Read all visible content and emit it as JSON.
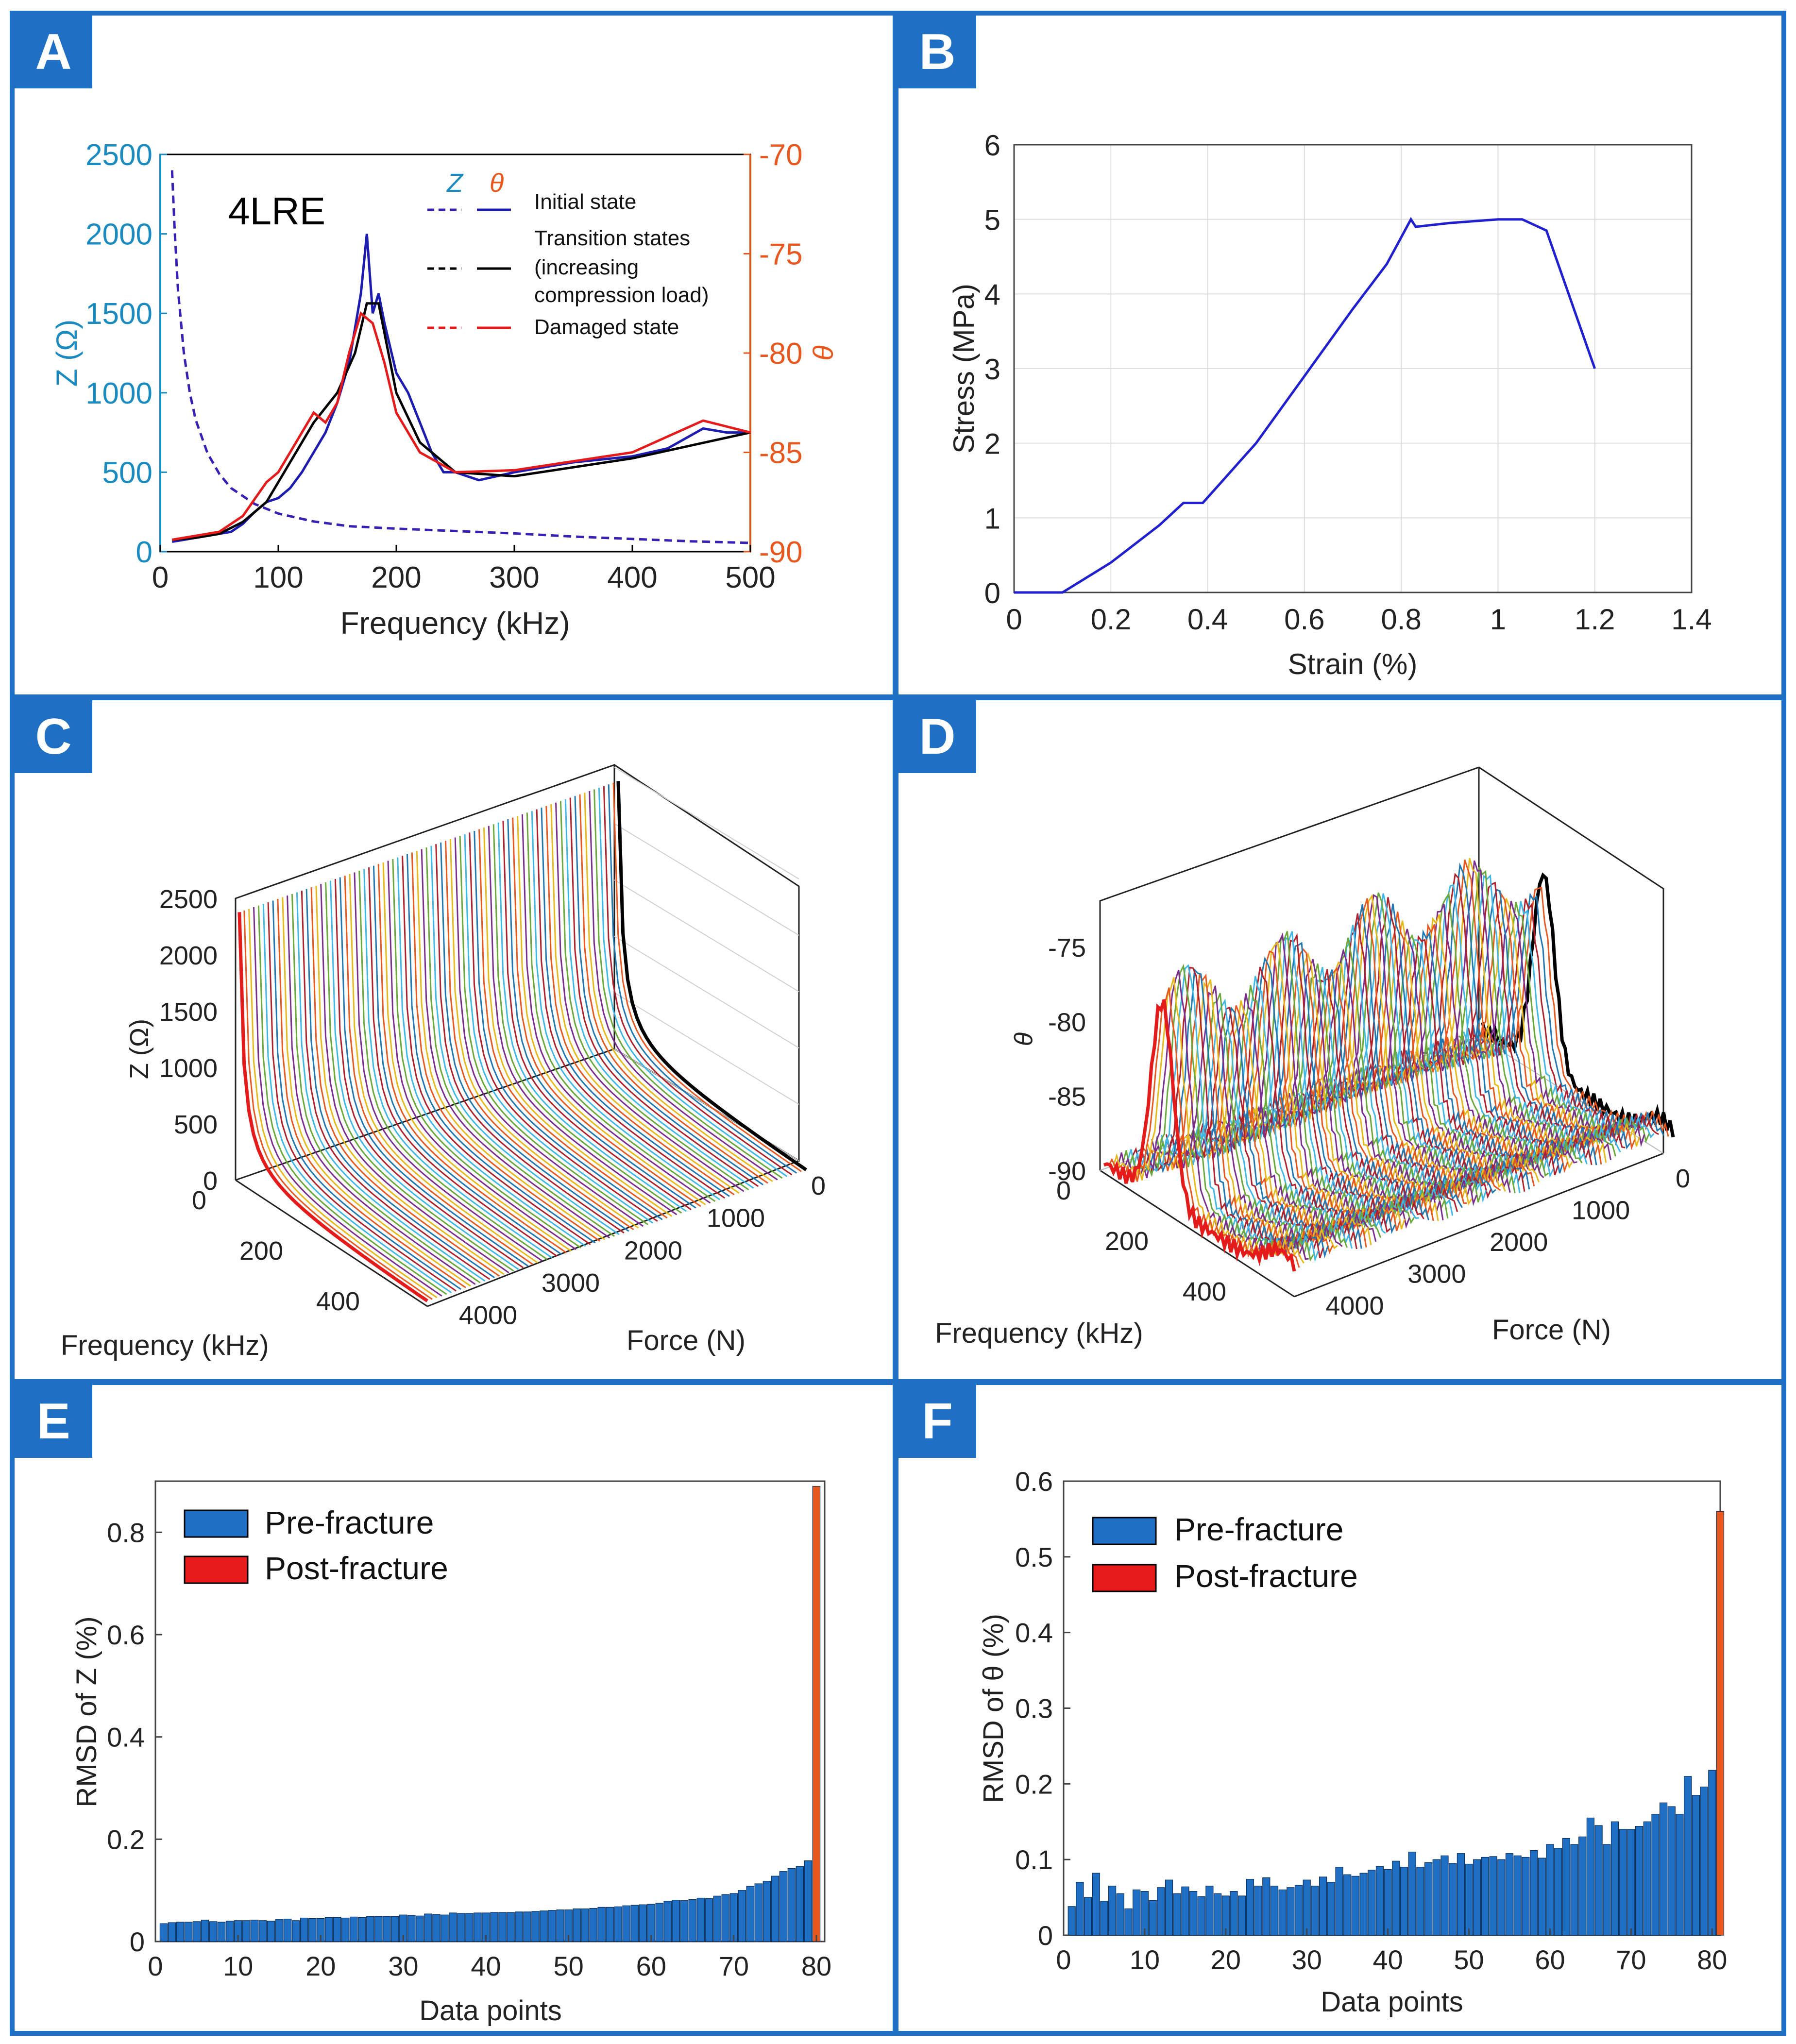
{
  "panels": {
    "A": {
      "label": "A",
      "chart_data": {
        "type": "line",
        "annotation": "4LRE",
        "xlabel": "Frequency (kHz)",
        "ylabel_left": "Z (Ω)",
        "ylabel_right": "θ",
        "xlim": [
          0,
          500
        ],
        "ylim_left": [
          0,
          2500
        ],
        "ylim_right": [
          -90,
          -70
        ],
        "xticks": [
          0,
          100,
          200,
          300,
          400,
          500
        ],
        "yticks_left": [
          0,
          500,
          1000,
          1500,
          2000,
          2500
        ],
        "yticks_right": [
          -90,
          -85,
          -80,
          -75,
          -70
        ],
        "legend_header": [
          "Z",
          "θ"
        ],
        "legend": [
          "Initial state",
          "Transition states",
          "(increasing",
          "compression load)",
          "Damaged state"
        ],
        "series": [
          {
            "name": "Z (dashed)",
            "color": "#3a1fb5",
            "x": [
              10,
              12,
              15,
              20,
              25,
              30,
              40,
              50,
              60,
              80,
              100,
              130,
              160,
              200,
              250,
              300,
              350,
              400,
              450,
              500
            ],
            "values": [
              2400,
              2050,
              1650,
              1250,
              1000,
              830,
              620,
              490,
              400,
              300,
              240,
              190,
              160,
              145,
              130,
              115,
              95,
              80,
              65,
              55
            ]
          },
          {
            "name": "θ Initial state",
            "color": "#1c1cb0",
            "x": [
              10,
              20,
              30,
              40,
              50,
              60,
              70,
              80,
              90,
              100,
              110,
              120,
              130,
              140,
              150,
              160,
              170,
              175,
              180,
              185,
              190,
              200,
              210,
              220,
              230,
              240,
              250,
              270,
              300,
              350,
              400,
              430,
              460,
              480,
              500
            ],
            "values": [
              -89.5,
              -89.4,
              -89.3,
              -89.2,
              -89.1,
              -89.0,
              -88.6,
              -88.0,
              -87.5,
              -87.3,
              -86.8,
              -86.0,
              -85.0,
              -84.0,
              -82.5,
              -80.5,
              -77.0,
              -74.0,
              -78.0,
              -77.0,
              -78.5,
              -81.0,
              -82.0,
              -83.5,
              -85.0,
              -86.0,
              -86.0,
              -86.4,
              -86.0,
              -85.5,
              -85.2,
              -84.8,
              -83.8,
              -84.0,
              -84.0
            ]
          },
          {
            "name": "θ Transition states",
            "color": "#000000",
            "x": [
              10,
              30,
              50,
              70,
              90,
              110,
              130,
              150,
              165,
              175,
              185,
              200,
              220,
              250,
              300,
              400,
              500
            ],
            "values": [
              -89.4,
              -89.3,
              -89.1,
              -88.5,
              -87.5,
              -85.5,
              -83.5,
              -82.0,
              -80.0,
              -77.5,
              -77.5,
              -82.0,
              -84.5,
              -86.0,
              -86.2,
              -85.3,
              -84.0
            ]
          },
          {
            "name": "θ Damaged state",
            "color": "#e51b1b",
            "x": [
              10,
              30,
              50,
              70,
              90,
              100,
              110,
              120,
              130,
              140,
              150,
              160,
              170,
              180,
              190,
              200,
              220,
              250,
              300,
              400,
              460,
              500
            ],
            "values": [
              -89.4,
              -89.2,
              -89.0,
              -88.2,
              -86.5,
              -86.0,
              -85.0,
              -84.0,
              -83.0,
              -83.5,
              -82.5,
              -80.0,
              -78.0,
              -78.5,
              -80.5,
              -83.0,
              -85.0,
              -86.0,
              -85.9,
              -85.0,
              -83.4,
              -84.0
            ]
          }
        ]
      }
    },
    "B": {
      "label": "B",
      "chart_data": {
        "type": "line",
        "xlabel": "Strain (%)",
        "ylabel": "Stress (MPa)",
        "xlim": [
          0,
          1.4
        ],
        "ylim": [
          0,
          6
        ],
        "xticks": [
          "0",
          "0.2",
          "0.4",
          "0.6",
          "0.8",
          "1",
          "1.2",
          "1.4"
        ],
        "xtick_values": [
          0,
          0.2,
          0.4,
          0.6,
          0.8,
          1.0,
          1.2,
          1.4
        ],
        "yticks": [
          0,
          1,
          2,
          3,
          4,
          5,
          6
        ],
        "grid": true,
        "series": [
          {
            "name": "Stress-strain",
            "color": "#2020d0",
            "x": [
              0,
              0.1,
              0.2,
              0.3,
              0.35,
              0.39,
              0.5,
              0.6,
              0.7,
              0.77,
              0.82,
              0.83,
              0.9,
              1.0,
              1.05,
              1.1,
              1.2
            ],
            "values": [
              0,
              0,
              0.4,
              0.9,
              1.2,
              1.2,
              2.0,
              2.9,
              3.8,
              4.4,
              5.0,
              4.9,
              4.95,
              5.0,
              5.0,
              4.85,
              3.0
            ]
          }
        ]
      }
    },
    "C": {
      "label": "C",
      "chart_data": {
        "type": "line",
        "style": "3d-waterfall",
        "zlabel": "Z (Ω)",
        "xlabel": "Frequency (kHz)",
        "ylabel": "Force (N)",
        "zticks": [
          0,
          500,
          1000,
          1500,
          2000,
          2500
        ],
        "freq_ticks": [
          0,
          200,
          400
        ],
        "force_ticks": [
          0,
          1000,
          2000,
          3000,
          4000
        ],
        "series_count": 80,
        "first_series_color": "#000000",
        "last_series_color": "#e51b1b"
      }
    },
    "D": {
      "label": "D",
      "chart_data": {
        "type": "line",
        "style": "3d-waterfall",
        "zlabel": "θ",
        "xlabel": "Frequency (kHz)",
        "ylabel": "Force (N)",
        "zticks": [
          -90,
          -85,
          -80,
          -75
        ],
        "freq_ticks": [
          0,
          200,
          400
        ],
        "force_ticks": [
          0,
          1000,
          2000,
          3000,
          4000
        ],
        "series_count": 80,
        "first_series_color": "#000000",
        "last_series_color": "#e51b1b"
      }
    },
    "E": {
      "label": "E",
      "chart_data": {
        "type": "bar",
        "xlabel": "Data points",
        "ylabel": "RMSD of Z (%)",
        "xlim": [
          0,
          81
        ],
        "ylim": [
          0,
          0.9
        ],
        "xticks": [
          0,
          10,
          20,
          30,
          40,
          50,
          60,
          70,
          80
        ],
        "yticks": [
          "0",
          "0.2",
          "0.4",
          "0.6",
          "0.8"
        ],
        "ytick_values": [
          0,
          0.2,
          0.4,
          0.6,
          0.8
        ],
        "legend": [
          "Pre-fracture",
          "Post-fracture"
        ],
        "colors": {
          "pre": "#1f6fc4",
          "post": "#e8581e"
        },
        "values": [
          0.035,
          0.037,
          0.038,
          0.038,
          0.039,
          0.042,
          0.039,
          0.038,
          0.04,
          0.041,
          0.041,
          0.042,
          0.041,
          0.04,
          0.043,
          0.044,
          0.041,
          0.046,
          0.045,
          0.045,
          0.047,
          0.047,
          0.046,
          0.048,
          0.047,
          0.049,
          0.049,
          0.049,
          0.049,
          0.052,
          0.051,
          0.05,
          0.054,
          0.053,
          0.052,
          0.056,
          0.055,
          0.055,
          0.056,
          0.056,
          0.057,
          0.057,
          0.057,
          0.058,
          0.058,
          0.059,
          0.06,
          0.061,
          0.062,
          0.062,
          0.064,
          0.064,
          0.065,
          0.067,
          0.067,
          0.068,
          0.07,
          0.071,
          0.072,
          0.073,
          0.075,
          0.079,
          0.081,
          0.08,
          0.082,
          0.085,
          0.084,
          0.089,
          0.092,
          0.094,
          0.1,
          0.108,
          0.113,
          0.118,
          0.128,
          0.137,
          0.143,
          0.147,
          0.158,
          0.89
        ],
        "post_index": 79
      }
    },
    "F": {
      "label": "F",
      "chart_data": {
        "type": "bar",
        "xlabel": "Data points",
        "ylabel": "RMSD of θ (%)",
        "xlim": [
          0,
          81
        ],
        "ylim": [
          0,
          0.6
        ],
        "xticks": [
          0,
          10,
          20,
          30,
          40,
          50,
          60,
          70,
          80
        ],
        "yticks": [
          "0",
          "0.1",
          "0.2",
          "0.3",
          "0.4",
          "0.5",
          "0.6"
        ],
        "ytick_values": [
          0,
          0.1,
          0.2,
          0.3,
          0.4,
          0.5,
          0.6
        ],
        "legend": [
          "Pre-fracture",
          "Post-fracture"
        ],
        "colors": {
          "pre": "#1f6fc4",
          "post": "#e8581e"
        },
        "values": [
          0.038,
          0.07,
          0.05,
          0.082,
          0.045,
          0.065,
          0.055,
          0.035,
          0.06,
          0.058,
          0.046,
          0.063,
          0.073,
          0.055,
          0.064,
          0.058,
          0.051,
          0.065,
          0.055,
          0.052,
          0.058,
          0.052,
          0.074,
          0.065,
          0.076,
          0.065,
          0.06,
          0.063,
          0.066,
          0.073,
          0.065,
          0.077,
          0.07,
          0.09,
          0.08,
          0.078,
          0.082,
          0.086,
          0.091,
          0.087,
          0.098,
          0.09,
          0.11,
          0.09,
          0.096,
          0.1,
          0.105,
          0.095,
          0.108,
          0.094,
          0.1,
          0.103,
          0.104,
          0.1,
          0.108,
          0.105,
          0.103,
          0.112,
          0.102,
          0.12,
          0.115,
          0.128,
          0.12,
          0.13,
          0.155,
          0.145,
          0.12,
          0.15,
          0.14,
          0.14,
          0.144,
          0.15,
          0.16,
          0.175,
          0.17,
          0.16,
          0.21,
          0.185,
          0.196,
          0.218,
          0.56
        ],
        "post_index": 80
      }
    }
  }
}
